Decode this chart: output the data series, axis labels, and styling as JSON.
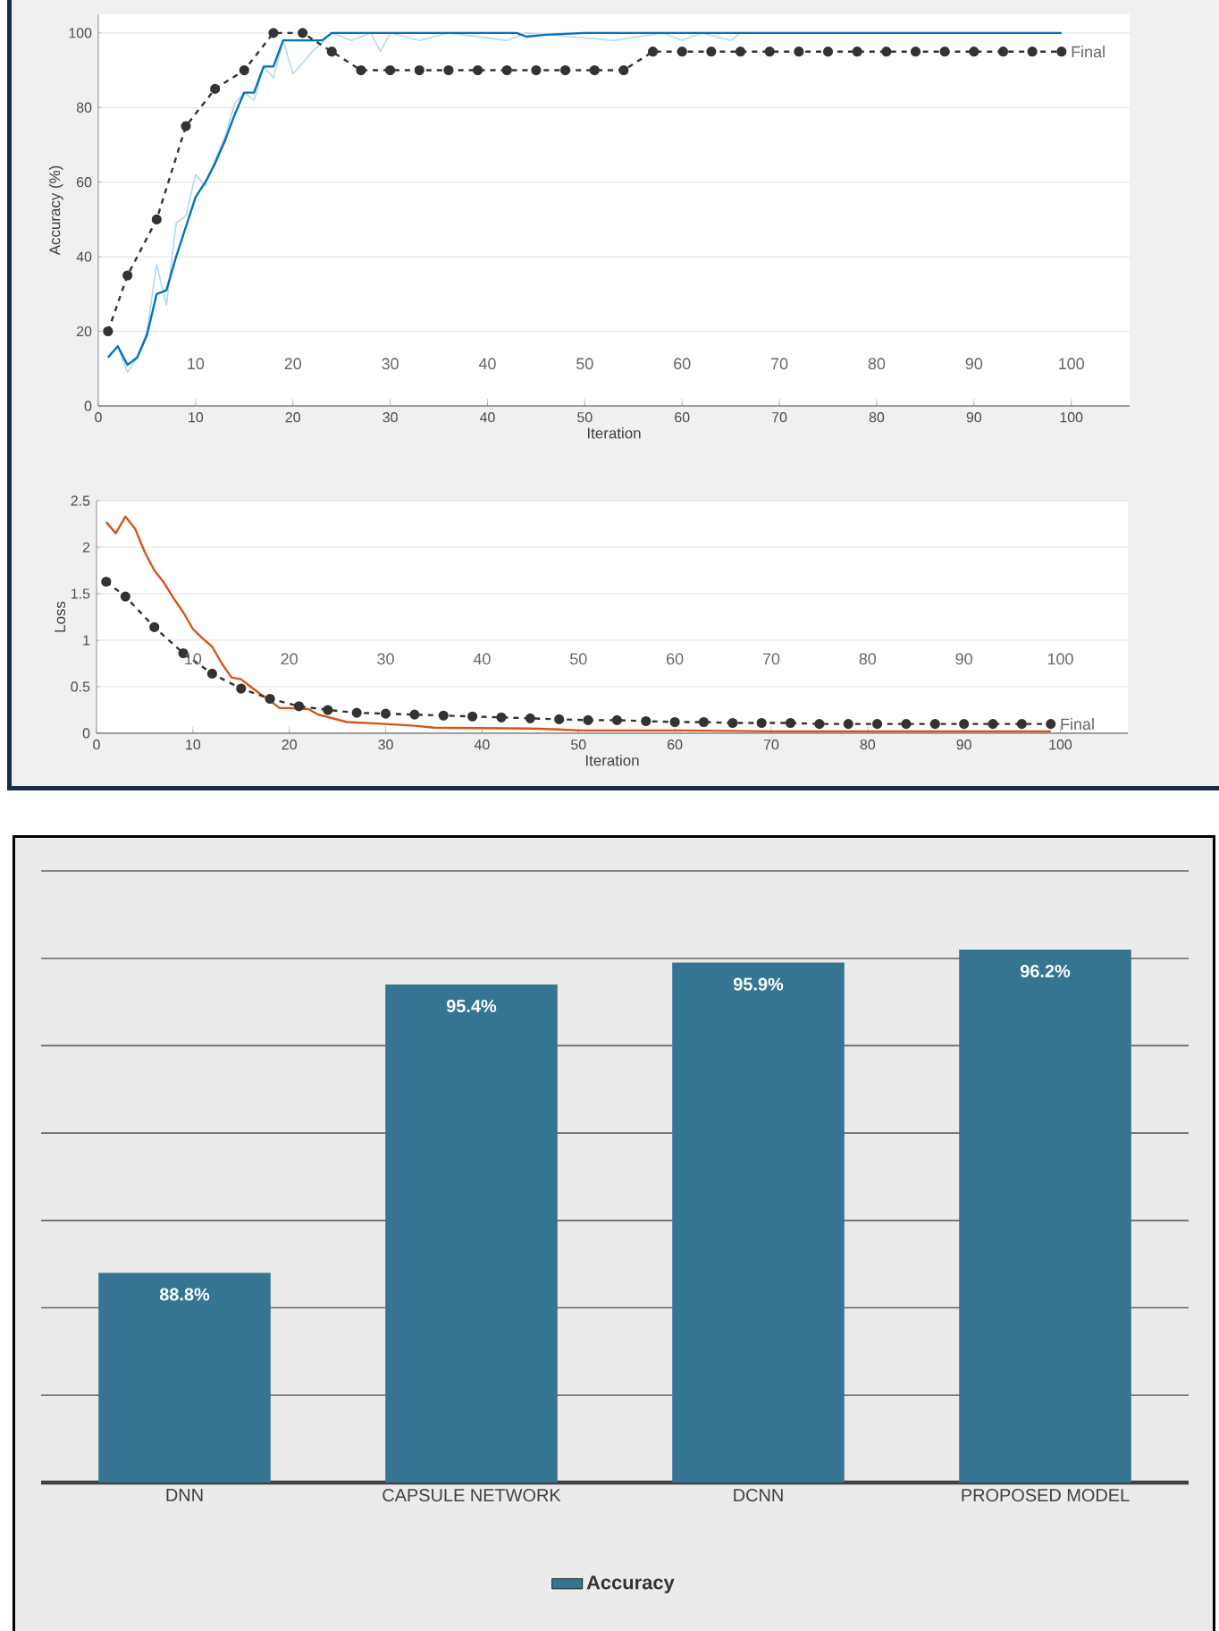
{
  "chart_data": [
    {
      "type": "line",
      "xlabel": "Iteration",
      "ylabel": "Accuracy (%)",
      "xlim": [
        0,
        106
      ],
      "ylim": [
        0,
        105
      ],
      "xticks": [
        0,
        10,
        20,
        30,
        40,
        50,
        60,
        70,
        80,
        90,
        100
      ],
      "yticks": [
        0,
        20,
        40,
        60,
        80,
        100
      ],
      "grid": "y",
      "legend": false,
      "series": [
        {
          "color": "#b5d7ef",
          "x": [
            1,
            2,
            3,
            4,
            5,
            6,
            7,
            8,
            9,
            10,
            11,
            12,
            13,
            14,
            15,
            16,
            17,
            18,
            19,
            20,
            22,
            24,
            26,
            28,
            29,
            30,
            33,
            36,
            42,
            44,
            53,
            58,
            60,
            62,
            65,
            66,
            99
          ],
          "values": [
            13,
            16,
            9,
            13,
            20,
            38,
            27,
            49,
            51,
            62,
            59,
            66,
            72,
            81,
            84,
            82,
            91,
            88,
            98,
            89,
            95,
            100,
            98,
            100,
            95,
            100,
            98,
            100,
            98,
            100,
            98,
            100,
            98,
            100,
            98,
            100,
            100
          ]
        },
        {
          "color": "#0072bd",
          "x": [
            1,
            2,
            3,
            4,
            5,
            6,
            7,
            8,
            9,
            10,
            11,
            12,
            13,
            14,
            15,
            16,
            17,
            18,
            19,
            20,
            23,
            24,
            40,
            43,
            44,
            46,
            50,
            99
          ],
          "values": [
            13,
            16,
            11,
            13,
            19,
            30,
            31,
            40,
            48,
            56,
            60,
            65,
            71,
            78,
            84,
            84,
            91,
            91,
            98,
            98,
            98,
            100,
            100,
            100,
            99,
            99.5,
            100,
            100
          ]
        },
        {
          "color": "#333333",
          "marker": "circle",
          "line_style": "dashed",
          "x": [
            1,
            3,
            6,
            9,
            12,
            15,
            18,
            21,
            24,
            27,
            30,
            33,
            36,
            39,
            42,
            45,
            48,
            51,
            54,
            57,
            60,
            63,
            66,
            69,
            72,
            75,
            78,
            81,
            84,
            87,
            90,
            93,
            96,
            99
          ],
          "values": [
            20,
            35,
            50,
            75,
            85,
            90,
            100,
            100,
            95,
            90,
            90,
            90,
            90,
            90,
            90,
            90,
            90,
            90,
            90,
            95,
            95,
            95,
            95,
            95,
            95,
            95,
            95,
            95,
            95,
            95,
            95,
            95,
            95,
            95
          ]
        }
      ],
      "x2lim": [
        0,
        106
      ],
      "x2ticks": [
        10,
        20,
        30,
        40,
        50,
        60,
        70,
        80,
        90,
        100
      ],
      "annotations": [
        "Final"
      ]
    },
    {
      "type": "line",
      "xlabel": "Iteration",
      "ylabel": "Loss",
      "xlim": [
        0,
        107
      ],
      "ylim": [
        0,
        2.5
      ],
      "xticks": [
        0,
        10,
        20,
        30,
        40,
        50,
        60,
        70,
        80,
        90,
        100
      ],
      "yticks": [
        0,
        0.5,
        1,
        1.5,
        2,
        2.5
      ],
      "grid": "y",
      "legend": false,
      "series": [
        {
          "color": "#d95319",
          "x": [
            1,
            2,
            3,
            4,
            5,
            6,
            7,
            8,
            9,
            10,
            11,
            12,
            13,
            14,
            15,
            16,
            17,
            18,
            19,
            20,
            22,
            23,
            26,
            30,
            33,
            35,
            45,
            48,
            50,
            60,
            70,
            80,
            99
          ],
          "values": [
            2.27,
            2.15,
            2.33,
            2.2,
            1.95,
            1.75,
            1.62,
            1.45,
            1.3,
            1.12,
            1.02,
            0.93,
            0.75,
            0.6,
            0.58,
            0.5,
            0.42,
            0.35,
            0.27,
            0.27,
            0.26,
            0.2,
            0.12,
            0.1,
            0.08,
            0.06,
            0.05,
            0.04,
            0.03,
            0.03,
            0.02,
            0.02,
            0.02
          ]
        },
        {
          "color": "#333333",
          "marker": "circle",
          "line_style": "dashed",
          "x": [
            1,
            3,
            6,
            9,
            12,
            15,
            18,
            21,
            24,
            27,
            30,
            33,
            36,
            39,
            42,
            45,
            48,
            51,
            54,
            57,
            60,
            63,
            66,
            69,
            72,
            75,
            78,
            81,
            84,
            87,
            90,
            93,
            96,
            99
          ],
          "values": [
            1.63,
            1.47,
            1.14,
            0.86,
            0.64,
            0.48,
            0.37,
            0.29,
            0.25,
            0.22,
            0.21,
            0.2,
            0.19,
            0.18,
            0.17,
            0.16,
            0.15,
            0.14,
            0.14,
            0.13,
            0.12,
            0.12,
            0.11,
            0.11,
            0.11,
            0.1,
            0.1,
            0.1,
            0.1,
            0.1,
            0.1,
            0.1,
            0.1,
            0.1
          ]
        }
      ],
      "x2lim": [
        0,
        107
      ],
      "x2ticks": [
        10,
        20,
        30,
        40,
        50,
        60,
        70,
        80,
        90,
        100
      ],
      "annotations": [
        "Final"
      ]
    },
    {
      "type": "bar",
      "categories": [
        "DNN",
        "CAPSULE NETWORK",
        "DCNN",
        "PROPOSED MODEL"
      ],
      "ylim": [
        84,
        98
      ],
      "yticks": [
        {
          "value": 84,
          "label": null
        },
        {
          "value": 86,
          "label": null
        },
        {
          "value": 88,
          "label": null
        },
        {
          "value": 90,
          "label": null
        },
        {
          "value": 92,
          "label": null
        },
        {
          "value": 94,
          "label": null
        },
        {
          "value": 96,
          "label": null
        },
        {
          "value": 98,
          "label": null
        }
      ],
      "tick_labels": "x",
      "grid": "y",
      "legend": "bottom",
      "series": [
        {
          "name": "Accuracy",
          "color": "#367591",
          "values": [
            88.8,
            95.4,
            95.9,
            96.2
          ],
          "value_labels": [
            "88.8%",
            "95.4%",
            "95.9%",
            "96.2%"
          ]
        }
      ]
    }
  ]
}
